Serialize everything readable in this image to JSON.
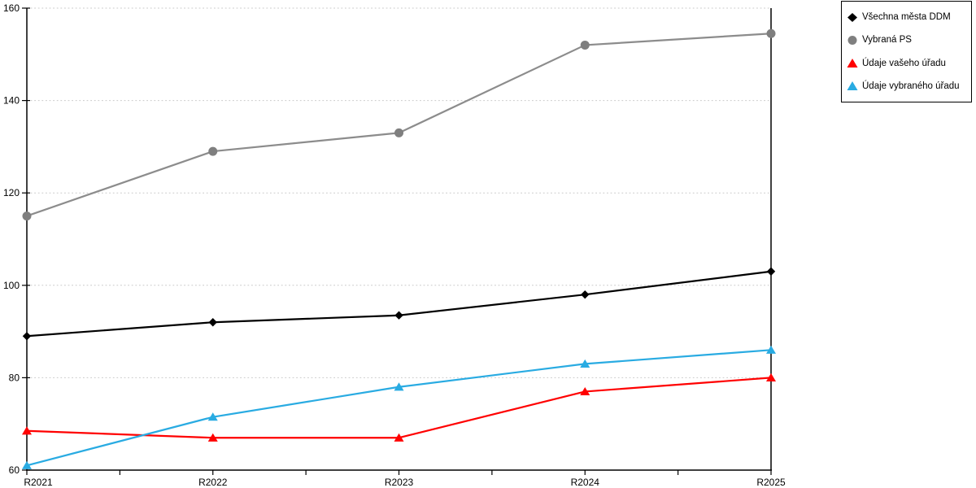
{
  "chart_data": {
    "type": "line",
    "title": "",
    "xlabel": "",
    "ylabel": "",
    "categories": [
      "R2021",
      "R2022",
      "R2023",
      "R2024",
      "R2025"
    ],
    "y_ticks": [
      60,
      80,
      100,
      120,
      140,
      160
    ],
    "ylim": [
      60,
      160
    ],
    "grid": "horizontal-dotted",
    "grid_color": "#c9c9c9",
    "axis_color": "#000000",
    "legend_position": "top-right",
    "series": [
      {
        "name": "Všechna města DDM",
        "marker": "diamond",
        "color": "#000000",
        "values": [
          89,
          92,
          93.5,
          98,
          103
        ]
      },
      {
        "name": "Vybraná PS",
        "marker": "circle",
        "color": "#7f7f7f",
        "line_color": "#8c8c8c",
        "values": [
          115,
          129,
          133,
          152,
          154.5
        ]
      },
      {
        "name": "Údaje vašeho úřadu",
        "marker": "triangle-up",
        "color": "#ff0000",
        "values": [
          68.5,
          67,
          67,
          77,
          80
        ]
      },
      {
        "name": "Údaje vybraného úřadu",
        "marker": "triangle-up",
        "color": "#29abe2",
        "values": [
          61,
          71.5,
          78,
          83,
          86
        ]
      }
    ]
  }
}
